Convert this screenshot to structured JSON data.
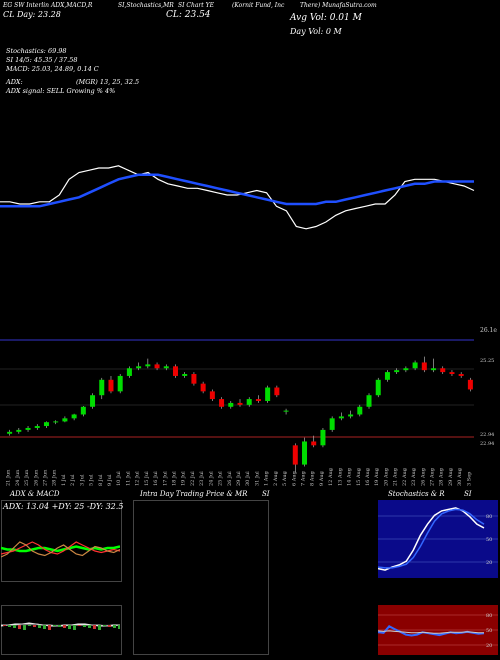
{
  "header": {
    "line1": {
      "a": "EG SW Interlin ADX,MACD,R",
      "b": "SI,Stochastics,MR",
      "c": "SI Chart YE",
      "d": "(Kornit Fund, Inc",
      "e": "There) MunafaSutra.com"
    },
    "price_left": "CL Day: 23.28",
    "price_mid": "CL: 23.54",
    "avg_vol": "Avg Vol: 0.01 M",
    "day_vol": "Day Vol: 0   M",
    "stochastics": "Stochastics: 69.98",
    "si": "SI 14/5: 45.35 / 37.58",
    "macd": "MACD: 25.03, 24.89, 0.14  C",
    "adx": "ADX:",
    "mrsi": "(MGR) 13, 25, 32.5",
    "adx_signal": "ADX  signal: SELL Growing % 4%"
  },
  "price_axis": {
    "top_label": "26.1e",
    "mid_label": "25.25",
    "low_label1": "22.94",
    "low_label2": "22.94"
  },
  "chart_data": [
    {
      "type": "line",
      "name": "RSI / stochastic overview",
      "series": [
        {
          "name": "",
          "color": "#ffffff",
          "values": [
            42,
            42,
            41,
            41,
            42,
            42,
            45,
            52,
            55,
            56,
            57,
            57,
            58,
            56,
            54,
            55,
            52,
            50,
            49,
            48,
            48,
            47,
            46,
            45,
            45,
            46,
            47,
            46,
            40,
            38,
            31,
            30,
            31,
            33,
            36,
            38,
            39,
            40,
            41,
            41,
            45,
            51,
            52,
            52,
            52,
            51,
            50,
            49,
            47
          ]
        },
        {
          "name": "",
          "color": "#1f4fff",
          "values": [
            40,
            40,
            40,
            40,
            40,
            41,
            42,
            43,
            44,
            46,
            48,
            50,
            52,
            53,
            54,
            54,
            54,
            53,
            52,
            51,
            50,
            49,
            48,
            47,
            46,
            45,
            44,
            43,
            42,
            41,
            41,
            41,
            41,
            42,
            42,
            43,
            44,
            45,
            46,
            47,
            48,
            49,
            50,
            50,
            51,
            51,
            51,
            51,
            51
          ]
        }
      ],
      "ylim": [
        25,
        65
      ]
    },
    {
      "type": "candlestick",
      "title": "",
      "categories": [
        "21 Jun",
        "24 Jun",
        "25 Jun",
        "26 Jun",
        "27 Jun",
        "28 Jun",
        "1 Jul",
        "2 Jul",
        "3 Jul",
        "5 Jul",
        "8 Jul",
        "9 Jul",
        "10 Jul",
        "11 Jul",
        "12 Jul",
        "15 Jul",
        "16 Jul",
        "17 Jul",
        "18 Jul",
        "19 Jul",
        "22 Jul",
        "23 Jul",
        "24 Jul",
        "25 Jul",
        "26 Jul",
        "29 Jul",
        "30 Jul",
        "31 Jul",
        "1 Aug",
        "2 Aug",
        "5 Aug",
        "6 Aug",
        "7 Aug",
        "8 Aug",
        "9 Aug",
        "12 Aug",
        "13 Aug",
        "14 Aug",
        "15 Aug",
        "16 Aug",
        "19 Aug",
        "20 Aug",
        "21 Aug",
        "22 Aug",
        "23 Aug",
        "26 Aug",
        "27 Aug",
        "28 Aug",
        "29 Aug",
        "30 Aug",
        "3 Sep"
      ],
      "candles": [
        {
          "o": 23.4,
          "c": 23.45,
          "h": 23.5,
          "l": 23.35
        },
        {
          "o": 23.45,
          "c": 23.5,
          "h": 23.55,
          "l": 23.4
        },
        {
          "o": 23.5,
          "c": 23.55,
          "h": 23.6,
          "l": 23.45
        },
        {
          "o": 23.55,
          "c": 23.6,
          "h": 23.65,
          "l": 23.5
        },
        {
          "o": 23.6,
          "c": 23.7,
          "h": 23.72,
          "l": 23.55
        },
        {
          "o": 23.7,
          "c": 23.72,
          "h": 23.75,
          "l": 23.65
        },
        {
          "o": 23.72,
          "c": 23.8,
          "h": 23.85,
          "l": 23.7
        },
        {
          "o": 23.8,
          "c": 23.9,
          "h": 23.92,
          "l": 23.75
        },
        {
          "o": 23.9,
          "c": 24.1,
          "h": 24.12,
          "l": 23.85
        },
        {
          "o": 24.1,
          "c": 24.4,
          "h": 24.45,
          "l": 24.05
        },
        {
          "o": 24.4,
          "c": 24.8,
          "h": 24.85,
          "l": 24.3
        },
        {
          "o": 24.8,
          "c": 24.5,
          "h": 24.9,
          "l": 24.45
        },
        {
          "o": 24.5,
          "c": 24.9,
          "h": 24.95,
          "l": 24.45
        },
        {
          "o": 24.9,
          "c": 25.1,
          "h": 25.15,
          "l": 24.85
        },
        {
          "o": 25.1,
          "c": 25.15,
          "h": 25.25,
          "l": 25.05
        },
        {
          "o": 25.15,
          "c": 25.2,
          "h": 25.35,
          "l": 25.1
        },
        {
          "o": 25.2,
          "c": 25.1,
          "h": 25.25,
          "l": 25.05
        },
        {
          "o": 25.1,
          "c": 25.15,
          "h": 25.2,
          "l": 25.05
        },
        {
          "o": 25.15,
          "c": 24.9,
          "h": 25.2,
          "l": 24.85
        },
        {
          "o": 24.9,
          "c": 24.95,
          "h": 25.0,
          "l": 24.85
        },
        {
          "o": 24.95,
          "c": 24.7,
          "h": 25.0,
          "l": 24.65
        },
        {
          "o": 24.7,
          "c": 24.5,
          "h": 24.75,
          "l": 24.45
        },
        {
          "o": 24.5,
          "c": 24.3,
          "h": 24.55,
          "l": 24.25
        },
        {
          "o": 24.3,
          "c": 24.1,
          "h": 24.35,
          "l": 24.05
        },
        {
          "o": 24.1,
          "c": 24.2,
          "h": 24.25,
          "l": 24.05
        },
        {
          "o": 24.2,
          "c": 24.15,
          "h": 24.3,
          "l": 24.1
        },
        {
          "o": 24.15,
          "c": 24.3,
          "h": 24.35,
          "l": 24.1
        },
        {
          "o": 24.3,
          "c": 24.25,
          "h": 24.4,
          "l": 24.2
        },
        {
          "o": 24.25,
          "c": 24.6,
          "h": 24.65,
          "l": 24.2
        },
        {
          "o": 24.6,
          "c": 24.4,
          "h": 24.65,
          "l": 24.35
        },
        {
          "o": 24.0,
          "c": 24.0,
          "h": 24.05,
          "l": 23.9
        },
        {
          "o": 23.1,
          "c": 22.6,
          "h": 23.15,
          "l": 22.4
        },
        {
          "o": 22.6,
          "c": 23.2,
          "h": 23.3,
          "l": 22.55
        },
        {
          "o": 23.2,
          "c": 23.1,
          "h": 23.35,
          "l": 23.05
        },
        {
          "o": 23.1,
          "c": 23.5,
          "h": 23.55,
          "l": 23.05
        },
        {
          "o": 23.5,
          "c": 23.8,
          "h": 23.85,
          "l": 23.45
        },
        {
          "o": 23.8,
          "c": 23.85,
          "h": 23.95,
          "l": 23.75
        },
        {
          "o": 23.85,
          "c": 23.9,
          "h": 24.0,
          "l": 23.8
        },
        {
          "o": 23.9,
          "c": 24.1,
          "h": 24.15,
          "l": 23.85
        },
        {
          "o": 24.1,
          "c": 24.4,
          "h": 24.45,
          "l": 24.05
        },
        {
          "o": 24.4,
          "c": 24.8,
          "h": 24.85,
          "l": 24.35
        },
        {
          "o": 24.8,
          "c": 25.0,
          "h": 25.05,
          "l": 24.75
        },
        {
          "o": 25.0,
          "c": 25.05,
          "h": 25.1,
          "l": 24.95
        },
        {
          "o": 25.05,
          "c": 25.1,
          "h": 25.15,
          "l": 25.0
        },
        {
          "o": 25.1,
          "c": 25.25,
          "h": 25.3,
          "l": 25.05
        },
        {
          "o": 25.25,
          "c": 25.05,
          "h": 25.4,
          "l": 25.0
        },
        {
          "o": 25.05,
          "c": 25.1,
          "h": 25.35,
          "l": 25.0
        },
        {
          "o": 25.1,
          "c": 25.0,
          "h": 25.15,
          "l": 24.95
        },
        {
          "o": 25.0,
          "c": 24.95,
          "h": 25.05,
          "l": 24.9
        },
        {
          "o": 24.95,
          "c": 24.9,
          "h": 25.0,
          "l": 24.85
        },
        {
          "o": 24.8,
          "c": 24.55,
          "h": 24.85,
          "l": 24.5
        }
      ],
      "ylim": [
        22.2,
        26.3
      ]
    },
    {
      "type": "line",
      "name": "ADX & MACD panel",
      "series": [
        {
          "name": "",
          "color": "#00ff00",
          "values": [
            20,
            19,
            19,
            18,
            18,
            19,
            20,
            20,
            19,
            18,
            19,
            20,
            21,
            20,
            19,
            20,
            19,
            20,
            20,
            21
          ]
        },
        {
          "name": "",
          "color": "#ff3333",
          "values": [
            16,
            17,
            18,
            20,
            22,
            24,
            22,
            19,
            17,
            16,
            18,
            21,
            24,
            22,
            20,
            18,
            17,
            18,
            19,
            18
          ]
        },
        {
          "name": "",
          "color": "#cc8844",
          "values": [
            14,
            16,
            20,
            24,
            22,
            18,
            16,
            15,
            17,
            20,
            22,
            19,
            16,
            15,
            18,
            21,
            20,
            18,
            17,
            19
          ]
        }
      ],
      "ylim": [
        0,
        40
      ]
    },
    {
      "type": "line",
      "name": "Stochastics panel",
      "series": [
        {
          "name": "",
          "color": "#ffffff",
          "values": [
            10,
            8,
            12,
            15,
            20,
            35,
            55,
            70,
            82,
            88,
            90,
            92,
            88,
            80,
            70,
            65
          ]
        },
        {
          "name": "",
          "color": "#3366ff",
          "values": [
            12,
            11,
            11,
            13,
            16,
            25,
            40,
            58,
            74,
            84,
            88,
            90,
            89,
            84,
            76,
            70
          ]
        }
      ],
      "ylim": [
        0,
        100
      ]
    },
    {
      "type": "line",
      "name": "RSI panel",
      "series": [
        {
          "name": "",
          "color": "#3366ff",
          "values": [
            45,
            44,
            58,
            52,
            46,
            40,
            38,
            40,
            45,
            43,
            41,
            39,
            42,
            45,
            43,
            44,
            46,
            44,
            42,
            43
          ]
        },
        {
          "name": "",
          "color": "#cccccc",
          "values": [
            48,
            47,
            48,
            47,
            46,
            45,
            44,
            44,
            45,
            44,
            43,
            43,
            44,
            45,
            45,
            45,
            46,
            45,
            44,
            44
          ]
        }
      ],
      "ylim": [
        0,
        100
      ]
    }
  ],
  "bottom_panels": {
    "adx_title": "ADX  & MACD",
    "adx_values": "ADX: 13.04  +DY: 25  -DY: 32.5",
    "intraday_title": "Intra  Day Trading Price  & MR",
    "intraday_title_b": "SI",
    "stoch_title": "Stochastics & R",
    "stoch_title_b": "SI",
    "stoch_labels": [
      "80",
      "50",
      "20"
    ],
    "rsi_labels": [
      "80",
      "50",
      "20"
    ]
  }
}
